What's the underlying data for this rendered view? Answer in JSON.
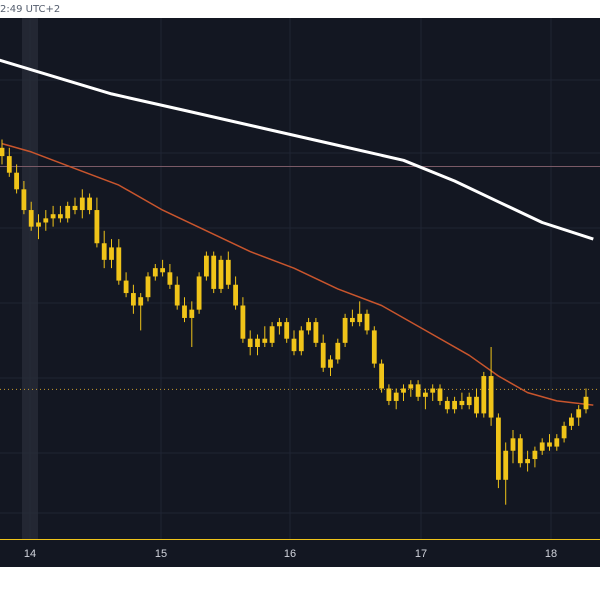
{
  "header": {
    "clock_text": "2:49 UTC+2"
  },
  "theme": {
    "background": "#131722",
    "axis_background": "#131722",
    "candle_color": "#f0c419",
    "ma_fast_color": "#c8552d",
    "ma_slow_color": "#ffffff",
    "grid_color": "#1f2433",
    "axis_border_color": "#f0c419",
    "axis_text_color": "#d1d4dc"
  },
  "chart_data": {
    "type": "candlestick",
    "x_axis": {
      "ticks": [
        "14",
        "15",
        "16",
        "17",
        "18"
      ]
    },
    "y_axis": {
      "min": 0,
      "max": 100,
      "labels_visible": false
    },
    "grid": true,
    "reference_lines": [
      {
        "kind": "solid",
        "value": 83.5,
        "color": "#7a5a66"
      },
      {
        "kind": "dotted",
        "value": 29.8,
        "color": "#c99a2e"
      }
    ],
    "candles": [
      {
        "o": 88,
        "h": 90,
        "l": 84,
        "c": 86
      },
      {
        "o": 86,
        "h": 88,
        "l": 81,
        "c": 82
      },
      {
        "o": 82,
        "h": 84,
        "l": 77,
        "c": 78
      },
      {
        "o": 78,
        "h": 80,
        "l": 72,
        "c": 73
      },
      {
        "o": 73,
        "h": 75,
        "l": 68,
        "c": 69
      },
      {
        "o": 69,
        "h": 72,
        "l": 66,
        "c": 70
      },
      {
        "o": 70,
        "h": 73,
        "l": 68,
        "c": 71
      },
      {
        "o": 71,
        "h": 74,
        "l": 69,
        "c": 72
      },
      {
        "o": 72,
        "h": 74,
        "l": 70,
        "c": 71
      },
      {
        "o": 71,
        "h": 75,
        "l": 70,
        "c": 74
      },
      {
        "o": 74,
        "h": 76,
        "l": 72,
        "c": 73
      },
      {
        "o": 73,
        "h": 78,
        "l": 71,
        "c": 76
      },
      {
        "o": 76,
        "h": 77,
        "l": 72,
        "c": 73
      },
      {
        "o": 73,
        "h": 76,
        "l": 64,
        "c": 65
      },
      {
        "o": 65,
        "h": 68,
        "l": 59,
        "c": 61
      },
      {
        "o": 61,
        "h": 66,
        "l": 59,
        "c": 64
      },
      {
        "o": 64,
        "h": 66,
        "l": 55,
        "c": 56
      },
      {
        "o": 56,
        "h": 58,
        "l": 52,
        "c": 53
      },
      {
        "o": 53,
        "h": 55,
        "l": 48,
        "c": 50
      },
      {
        "o": 50,
        "h": 53,
        "l": 44,
        "c": 52
      },
      {
        "o": 52,
        "h": 58,
        "l": 51,
        "c": 57
      },
      {
        "o": 57,
        "h": 60,
        "l": 56,
        "c": 59
      },
      {
        "o": 59,
        "h": 61,
        "l": 57,
        "c": 58
      },
      {
        "o": 58,
        "h": 60,
        "l": 54,
        "c": 55
      },
      {
        "o": 55,
        "h": 57,
        "l": 49,
        "c": 50
      },
      {
        "o": 50,
        "h": 52,
        "l": 46,
        "c": 47
      },
      {
        "o": 47,
        "h": 51,
        "l": 40,
        "c": 49
      },
      {
        "o": 49,
        "h": 58,
        "l": 48,
        "c": 57
      },
      {
        "o": 57,
        "h": 63,
        "l": 56,
        "c": 62
      },
      {
        "o": 62,
        "h": 63,
        "l": 53,
        "c": 54
      },
      {
        "o": 54,
        "h": 62,
        "l": 53,
        "c": 61
      },
      {
        "o": 61,
        "h": 63,
        "l": 54,
        "c": 55
      },
      {
        "o": 55,
        "h": 57,
        "l": 49,
        "c": 50
      },
      {
        "o": 50,
        "h": 52,
        "l": 41,
        "c": 42
      },
      {
        "o": 42,
        "h": 44,
        "l": 38,
        "c": 40
      },
      {
        "o": 40,
        "h": 43,
        "l": 38,
        "c": 42
      },
      {
        "o": 42,
        "h": 45,
        "l": 40,
        "c": 41
      },
      {
        "o": 41,
        "h": 46,
        "l": 40,
        "c": 45
      },
      {
        "o": 45,
        "h": 47,
        "l": 43,
        "c": 46
      },
      {
        "o": 46,
        "h": 47,
        "l": 41,
        "c": 42
      },
      {
        "o": 42,
        "h": 44,
        "l": 38,
        "c": 39
      },
      {
        "o": 39,
        "h": 45,
        "l": 38,
        "c": 44
      },
      {
        "o": 44,
        "h": 47,
        "l": 43,
        "c": 46
      },
      {
        "o": 46,
        "h": 47,
        "l": 40,
        "c": 41
      },
      {
        "o": 41,
        "h": 43,
        "l": 34,
        "c": 35
      },
      {
        "o": 35,
        "h": 38,
        "l": 33,
        "c": 37
      },
      {
        "o": 37,
        "h": 42,
        "l": 36,
        "c": 41
      },
      {
        "o": 41,
        "h": 48,
        "l": 40,
        "c": 47
      },
      {
        "o": 47,
        "h": 49,
        "l": 45,
        "c": 46
      },
      {
        "o": 46,
        "h": 51,
        "l": 45,
        "c": 48
      },
      {
        "o": 48,
        "h": 49,
        "l": 43,
        "c": 44
      },
      {
        "o": 44,
        "h": 45,
        "l": 35,
        "c": 36
      },
      {
        "o": 36,
        "h": 37,
        "l": 29,
        "c": 30
      },
      {
        "o": 30,
        "h": 31,
        "l": 26,
        "c": 27
      },
      {
        "o": 27,
        "h": 30,
        "l": 25,
        "c": 29
      },
      {
        "o": 29,
        "h": 31,
        "l": 27,
        "c": 30
      },
      {
        "o": 30,
        "h": 32,
        "l": 28,
        "c": 31
      },
      {
        "o": 31,
        "h": 32,
        "l": 27,
        "c": 28
      },
      {
        "o": 28,
        "h": 30,
        "l": 25,
        "c": 29
      },
      {
        "o": 29,
        "h": 31,
        "l": 27,
        "c": 30
      },
      {
        "o": 30,
        "h": 31,
        "l": 26,
        "c": 27
      },
      {
        "o": 27,
        "h": 28,
        "l": 24,
        "c": 25
      },
      {
        "o": 25,
        "h": 28,
        "l": 24,
        "c": 27
      },
      {
        "o": 27,
        "h": 29,
        "l": 25,
        "c": 26
      },
      {
        "o": 26,
        "h": 29,
        "l": 25,
        "c": 28
      },
      {
        "o": 28,
        "h": 30,
        "l": 23,
        "c": 24
      },
      {
        "o": 24,
        "h": 34,
        "l": 23,
        "c": 33
      },
      {
        "o": 33,
        "h": 40,
        "l": 21,
        "c": 23
      },
      {
        "o": 23,
        "h": 24,
        "l": 6,
        "c": 8
      },
      {
        "o": 8,
        "h": 17,
        "l": 2,
        "c": 15
      },
      {
        "o": 15,
        "h": 20,
        "l": 12,
        "c": 18
      },
      {
        "o": 18,
        "h": 19,
        "l": 11,
        "c": 12
      },
      {
        "o": 12,
        "h": 15,
        "l": 10,
        "c": 13
      },
      {
        "o": 13,
        "h": 16,
        "l": 11,
        "c": 15
      },
      {
        "o": 15,
        "h": 18,
        "l": 14,
        "c": 17
      },
      {
        "o": 17,
        "h": 19,
        "l": 15,
        "c": 16
      },
      {
        "o": 16,
        "h": 19,
        "l": 15,
        "c": 18
      },
      {
        "o": 18,
        "h": 22,
        "l": 17,
        "c": 21
      },
      {
        "o": 21,
        "h": 24,
        "l": 20,
        "c": 23
      },
      {
        "o": 23,
        "h": 26,
        "l": 21,
        "c": 25
      },
      {
        "o": 25,
        "h": 30,
        "l": 24,
        "c": 28
      }
    ],
    "ma_fast": [
      {
        "x": 0,
        "y": 89
      },
      {
        "x": 4,
        "y": 87
      },
      {
        "x": 10,
        "y": 83
      },
      {
        "x": 16,
        "y": 79
      },
      {
        "x": 22,
        "y": 73
      },
      {
        "x": 28,
        "y": 68
      },
      {
        "x": 34,
        "y": 63
      },
      {
        "x": 40,
        "y": 59
      },
      {
        "x": 46,
        "y": 54
      },
      {
        "x": 52,
        "y": 50
      },
      {
        "x": 58,
        "y": 44
      },
      {
        "x": 64,
        "y": 38
      },
      {
        "x": 68,
        "y": 33
      },
      {
        "x": 72,
        "y": 29
      },
      {
        "x": 76,
        "y": 27
      },
      {
        "x": 81,
        "y": 26
      }
    ],
    "ma_slow": [
      {
        "x": -2,
        "y": 110
      },
      {
        "x": 15,
        "y": 101
      },
      {
        "x": 25,
        "y": 97
      },
      {
        "x": 35,
        "y": 93
      },
      {
        "x": 45,
        "y": 89
      },
      {
        "x": 55,
        "y": 85
      },
      {
        "x": 62,
        "y": 80
      },
      {
        "x": 68,
        "y": 75
      },
      {
        "x": 74,
        "y": 70
      },
      {
        "x": 81,
        "y": 66
      }
    ]
  }
}
